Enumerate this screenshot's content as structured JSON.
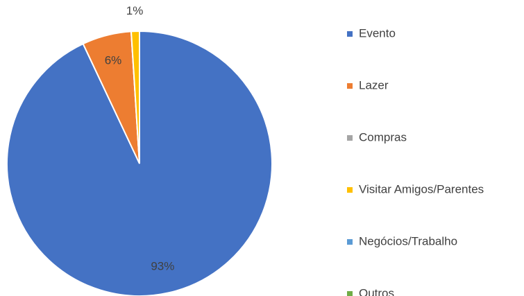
{
  "chart_data": {
    "type": "pie",
    "categories": [
      "Evento",
      "Lazer",
      "Compras",
      "Visitar Amigos/Parentes",
      "Negócios/Trabalho",
      "Outros"
    ],
    "values": [
      93,
      6,
      0,
      1,
      0,
      0
    ],
    "value_labels": [
      "93%",
      "6%",
      null,
      "1%",
      null,
      null
    ],
    "colors": [
      "#4472c4",
      "#ed7d31",
      "#a5a5a5",
      "#ffc000",
      "#5b9bd5",
      "#70ad47"
    ],
    "legend": "right"
  }
}
